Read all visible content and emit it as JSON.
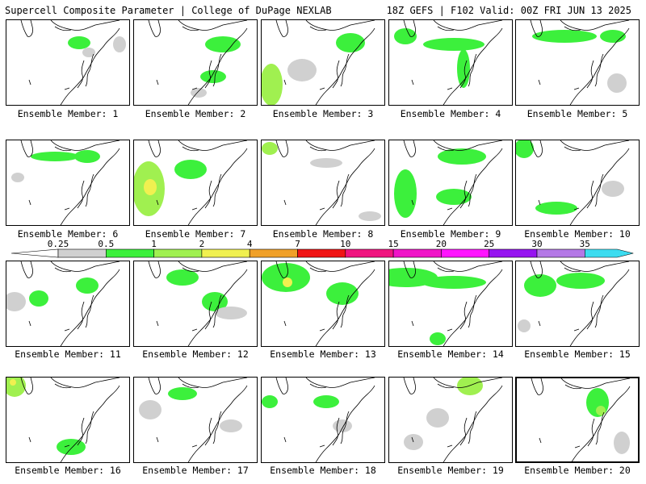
{
  "header": {
    "title": "Supercell Composite Parameter | College of DuPage NEXLAB",
    "run_info": "18Z GEFS | F102 Valid: 00Z FRI JUN 13 2025"
  },
  "colorbar": {
    "labels": [
      "0.25",
      "0.5",
      "1",
      "2",
      "4",
      "7",
      "10",
      "15",
      "20",
      "25",
      "30",
      "35"
    ],
    "colors": [
      "#d0d0d0",
      "#3cf03c",
      "#a0f050",
      "#f0f050",
      "#f0a028",
      "#f01414",
      "#f01480",
      "#f014c8",
      "#ff14ff",
      "#9614f0",
      "#b478e6",
      "#3cdcf0"
    ]
  },
  "members": [
    {
      "label": "Ensemble Member: 1"
    },
    {
      "label": "Ensemble Member: 2"
    },
    {
      "label": "Ensemble Member: 3"
    },
    {
      "label": "Ensemble Member: 4"
    },
    {
      "label": "Ensemble Member: 5"
    },
    {
      "label": "Ensemble Member: 6"
    },
    {
      "label": "Ensemble Member: 7"
    },
    {
      "label": "Ensemble Member: 8"
    },
    {
      "label": "Ensemble Member: 9"
    },
    {
      "label": "Ensemble Member: 10"
    },
    {
      "label": "Ensemble Member: 11"
    },
    {
      "label": "Ensemble Member: 12"
    },
    {
      "label": "Ensemble Member: 13"
    },
    {
      "label": "Ensemble Member: 14"
    },
    {
      "label": "Ensemble Member: 15"
    },
    {
      "label": "Ensemble Member: 16"
    },
    {
      "label": "Ensemble Member: 17"
    },
    {
      "label": "Ensemble Member: 18"
    },
    {
      "label": "Ensemble Member: 19"
    },
    {
      "label": "Ensemble Member: 20",
      "highlighted": true
    }
  ]
}
